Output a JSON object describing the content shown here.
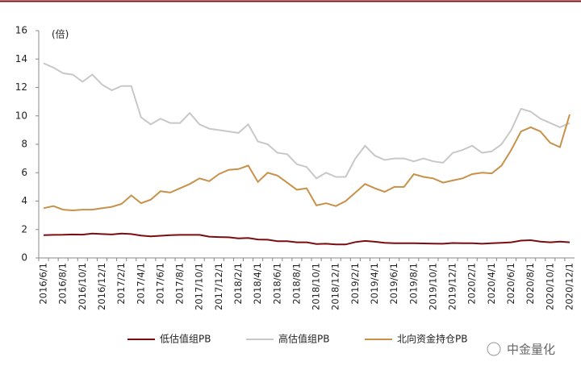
{
  "chart_data": {
    "type": "line",
    "annotation": "(倍)",
    "watermark": "中金量化",
    "categories": [
      "2016/6/1",
      null,
      "2016/8/1",
      null,
      "2016/10/1",
      null,
      "2016/12/1",
      null,
      "2017/2/1",
      null,
      "2017/4/1",
      null,
      "2017/6/1",
      null,
      "2017/8/1",
      null,
      "2017/10/1",
      null,
      "2017/12/1",
      null,
      "2018/2/1",
      null,
      "2018/4/1",
      null,
      "2018/6/1",
      null,
      "2018/8/1",
      null,
      "2018/10/1",
      null,
      "2018/12/1",
      null,
      "2019/2/1",
      null,
      "2019/4/1",
      null,
      "2019/6/1",
      null,
      "2019/8/1",
      null,
      "2019/10/1",
      null,
      "2019/12/1",
      null,
      "2020/2/1",
      null,
      "2020/4/1",
      null,
      "2020/6/1",
      null,
      "2020/8/1",
      null,
      "2020/10/1",
      null,
      "2020/12/1"
    ],
    "series": [
      {
        "name": "低估值组PB",
        "color": "#7b0c10",
        "values": [
          1.6,
          1.62,
          1.63,
          1.65,
          1.64,
          1.72,
          1.68,
          1.65,
          1.72,
          1.68,
          1.58,
          1.52,
          1.56,
          1.6,
          1.62,
          1.62,
          1.62,
          1.5,
          1.47,
          1.45,
          1.38,
          1.4,
          1.3,
          1.28,
          1.18,
          1.18,
          1.1,
          1.1,
          0.98,
          1.0,
          0.95,
          0.95,
          1.12,
          1.2,
          1.14,
          1.06,
          1.04,
          1.04,
          1.03,
          1.02,
          1.01,
          1.0,
          1.05,
          1.03,
          1.03,
          1.0,
          1.03,
          1.06,
          1.1,
          1.22,
          1.25,
          1.15,
          1.1,
          1.15,
          1.1
        ]
      },
      {
        "name": "高估值组PB",
        "color": "#c8c8c8",
        "values": [
          13.7,
          13.4,
          13.0,
          12.9,
          12.4,
          12.9,
          12.2,
          11.8,
          12.1,
          12.1,
          9.9,
          9.4,
          9.8,
          9.5,
          9.5,
          10.2,
          9.4,
          9.1,
          9.0,
          8.9,
          8.8,
          9.4,
          8.2,
          8.0,
          7.4,
          7.3,
          6.6,
          6.4,
          5.6,
          6.0,
          5.7,
          5.7,
          7.0,
          7.9,
          7.2,
          6.9,
          7.0,
          7.0,
          6.8,
          7.0,
          6.8,
          6.7,
          7.4,
          7.6,
          7.9,
          7.4,
          7.5,
          8.0,
          9.0,
          10.5,
          10.3,
          9.8,
          9.5,
          9.2,
          9.5
        ]
      },
      {
        "name": "北向资金持仓PB",
        "color": "#c8914a",
        "values": [
          3.5,
          3.65,
          3.4,
          3.35,
          3.4,
          3.4,
          3.5,
          3.6,
          3.8,
          4.4,
          3.85,
          4.1,
          4.7,
          4.6,
          4.9,
          5.2,
          5.6,
          5.4,
          5.9,
          6.2,
          6.25,
          6.5,
          5.35,
          6.0,
          5.8,
          5.3,
          4.8,
          4.9,
          3.7,
          3.85,
          3.65,
          4.0,
          4.6,
          5.2,
          4.9,
          4.65,
          5.0,
          5.0,
          5.9,
          5.7,
          5.6,
          5.3,
          5.45,
          5.6,
          5.9,
          6.0,
          5.95,
          6.5,
          7.6,
          8.9,
          9.2,
          8.9,
          8.1,
          7.8,
          10.1
        ]
      }
    ],
    "ylim": [
      0,
      16
    ],
    "yticks": [
      0,
      2,
      4,
      6,
      8,
      10,
      12,
      14,
      16
    ],
    "grid": false,
    "legend": "bottom"
  }
}
